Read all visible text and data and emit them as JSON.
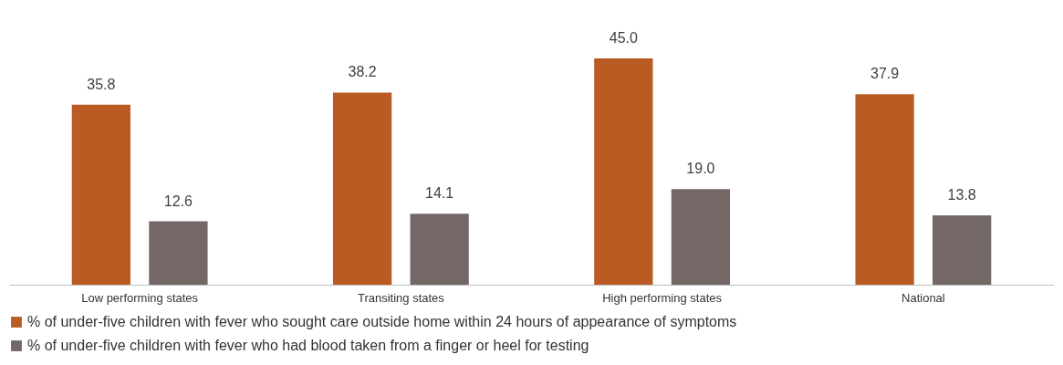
{
  "chart_data": {
    "type": "bar",
    "categories": [
      "Low performing states",
      "Transiting states",
      "High performing states",
      "National"
    ],
    "series": [
      {
        "name": "% of under-five children with fever who sought care outside home within 24 hours of appearance of symptoms",
        "color": "#b95b22",
        "values": [
          35.8,
          38.2,
          45.0,
          37.9
        ],
        "value_labels": [
          "35.8",
          "38.2",
          "45.0",
          "37.9"
        ]
      },
      {
        "name": "% of under-five children with fever who had blood taken from a finger or heel for testing",
        "color": "#736866",
        "values": [
          12.6,
          14.1,
          19.0,
          13.8
        ],
        "value_labels": [
          "12.6",
          "14.1",
          "19.0",
          "13.8"
        ]
      }
    ],
    "grid": false,
    "legend": "bottom",
    "tick_labels": "x"
  }
}
